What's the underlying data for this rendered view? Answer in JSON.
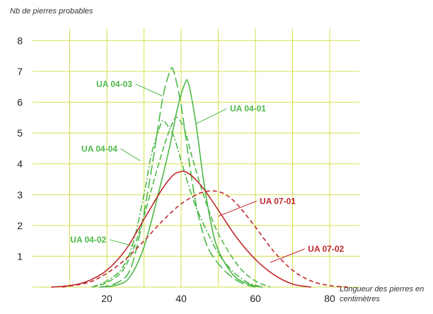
{
  "chart_data": {
    "type": "line",
    "ylabel": "Nb de pierres probables",
    "xlabel": "Longueur des pierres en centimètres",
    "xlim": [
      0,
      88
    ],
    "ylim": [
      0,
      8.4
    ],
    "x_ticks": [
      20,
      40,
      60,
      80
    ],
    "y_ticks": [
      1,
      2,
      3,
      4,
      5,
      6,
      7,
      8
    ],
    "grid": true,
    "colors": {
      "green": "#4db848",
      "red": "#c0282d",
      "grid": "#d6df4d"
    },
    "series": [
      {
        "name": "UA 04-01",
        "color": "#4db848",
        "dash": "solid",
        "x": [
          18,
          22,
          26,
          30,
          34,
          37,
          39,
          41,
          42,
          44,
          46,
          48,
          50,
          54,
          58,
          62
        ],
        "y": [
          0,
          0.05,
          0.3,
          1.3,
          3.1,
          4.6,
          5.8,
          6.6,
          6.6,
          5.3,
          3.5,
          2.1,
          1.2,
          0.4,
          0.1,
          0
        ]
      },
      {
        "name": "UA 04-03",
        "color": "#4db848",
        "dash": "long",
        "x": [
          18,
          22,
          26,
          29,
          32,
          35,
          37,
          38,
          40,
          42,
          44,
          46,
          48,
          52,
          56,
          60
        ],
        "y": [
          0,
          0.1,
          0.5,
          1.8,
          3.8,
          6.1,
          7.0,
          7.0,
          5.9,
          4.2,
          2.7,
          1.7,
          1.1,
          0.5,
          0.15,
          0
        ]
      },
      {
        "name": "UA 04-04",
        "color": "#4db848",
        "dash": "dashdot",
        "x": [
          16,
          20,
          24,
          27,
          30,
          32,
          34,
          35,
          36,
          38,
          40,
          42,
          44,
          47,
          50,
          54,
          58,
          62
        ],
        "y": [
          0,
          0.2,
          0.6,
          1.4,
          3.0,
          4.3,
          5.1,
          5.4,
          5.3,
          4.9,
          4.1,
          3.3,
          2.6,
          1.8,
          1.1,
          0.5,
          0.15,
          0
        ]
      },
      {
        "name": "UA 04-02",
        "color": "#4db848",
        "dash": "medium",
        "x": [
          16,
          20,
          24,
          27,
          30,
          33,
          36,
          38,
          39,
          41,
          43,
          46,
          49,
          52,
          56,
          60,
          64
        ],
        "y": [
          0,
          0.15,
          0.5,
          1.2,
          2.3,
          3.6,
          4.8,
          5.4,
          5.5,
          5.1,
          4.2,
          3.0,
          2.0,
          1.3,
          0.6,
          0.2,
          0
        ]
      },
      {
        "name": "UA 07-01",
        "color": "#c0282d",
        "dash": "solid",
        "x": [
          5,
          10,
          15,
          20,
          25,
          30,
          35,
          38,
          40,
          41,
          43,
          46,
          50,
          55,
          60,
          65,
          70,
          75
        ],
        "y": [
          0,
          0.05,
          0.2,
          0.55,
          1.2,
          2.2,
          3.2,
          3.65,
          3.75,
          3.75,
          3.6,
          3.2,
          2.5,
          1.6,
          0.9,
          0.4,
          0.1,
          0
        ]
      },
      {
        "name": "UA 07-02",
        "color": "#c0282d",
        "dash": "short",
        "x": [
          8,
          15,
          20,
          25,
          30,
          35,
          40,
          45,
          48,
          50,
          52,
          55,
          60,
          65,
          70,
          75,
          80,
          85
        ],
        "y": [
          0,
          0.15,
          0.45,
          0.9,
          1.5,
          2.15,
          2.7,
          3.05,
          3.12,
          3.1,
          3.0,
          2.7,
          1.95,
          1.15,
          0.55,
          0.2,
          0.05,
          0
        ]
      }
    ],
    "annotations": [
      {
        "text": "UA 04-03",
        "series": "UA 04-03",
        "color": "#4db848",
        "label_x": 22,
        "label_y": 6.5,
        "point_x": 35,
        "point_y": 6.2
      },
      {
        "text": "UA 04-01",
        "series": "UA 04-01",
        "color": "#4db848",
        "label_x": 58,
        "label_y": 5.7,
        "point_x": 44,
        "point_y": 5.3
      },
      {
        "text": "UA 04-04",
        "series": "UA 04-04",
        "color": "#4db848",
        "label_x": 18,
        "label_y": 4.4,
        "point_x": 29,
        "point_y": 4.1
      },
      {
        "text": "UA 04-02",
        "series": "UA 04-02",
        "color": "#4db848",
        "label_x": 15,
        "label_y": 1.45,
        "point_x": 28,
        "point_y": 1.3
      },
      {
        "text": "UA 07-01",
        "series": "UA 07-01",
        "color": "#c0282d",
        "label_x": 66,
        "label_y": 2.7,
        "point_x": 50,
        "point_y": 2.3
      },
      {
        "text": "UA 07-02",
        "series": "UA 07-02",
        "color": "#c0282d",
        "label_x": 79,
        "label_y": 1.15,
        "point_x": 64,
        "point_y": 0.8
      }
    ]
  }
}
